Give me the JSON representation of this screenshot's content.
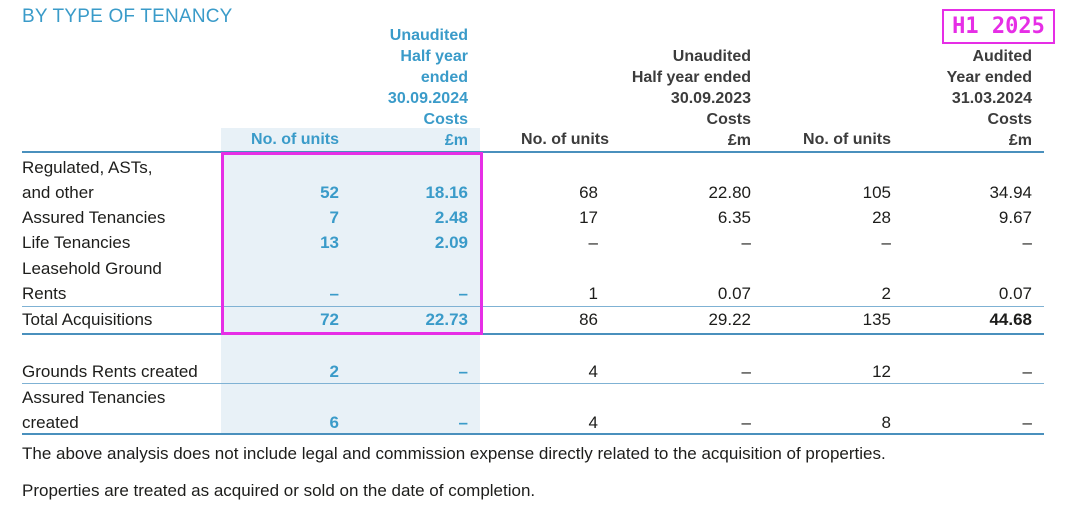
{
  "title": "BY TYPE OF TENANCY",
  "badge": "H1 2025",
  "header": {
    "col1": "No. of units",
    "col2": [
      "Unaudited",
      "Half year",
      "ended",
      "30.09.2024",
      "Costs",
      "£m"
    ],
    "col3": "No. of units",
    "col4": [
      "Unaudited",
      "Half year ended",
      "30.09.2023",
      "Costs",
      "£m"
    ],
    "col5": "No. of units",
    "col6": [
      "Audited",
      "Year ended",
      "31.03.2024",
      "Costs",
      "£m"
    ]
  },
  "rows": [
    {
      "label": [
        "Regulated, ASTs,",
        "and other"
      ],
      "values": [
        "52",
        "18.16",
        "68",
        "22.80",
        "105",
        "34.94"
      ]
    },
    {
      "label": [
        "Assured Tenancies"
      ],
      "values": [
        "7",
        "2.48",
        "17",
        "6.35",
        "28",
        "9.67"
      ]
    },
    {
      "label": [
        "Life Tenancies"
      ],
      "values": [
        "13",
        "2.09",
        "–",
        "–",
        "–",
        "–"
      ]
    },
    {
      "label": [
        "Leasehold Ground",
        "Rents"
      ],
      "values": [
        "–",
        "–",
        "1",
        "0.07",
        "2",
        "0.07"
      ]
    },
    {
      "label": [
        "Total Acquisitions"
      ],
      "values": [
        "72",
        "22.73",
        "86",
        "29.22",
        "135",
        "44.68"
      ]
    },
    {
      "label": [
        "Grounds Rents created"
      ],
      "values": [
        "2",
        "–",
        "4",
        "–",
        "12",
        "–"
      ]
    },
    {
      "label": [
        "Assured Tenancies",
        "created"
      ],
      "values": [
        "6",
        "–",
        "4",
        "–",
        "8",
        "–"
      ]
    }
  ],
  "notes": [
    "The above analysis does not include legal and commission expense directly related to the acquisition of properties.",
    "Properties are treated as acquired or sold on the date of completion."
  ]
}
